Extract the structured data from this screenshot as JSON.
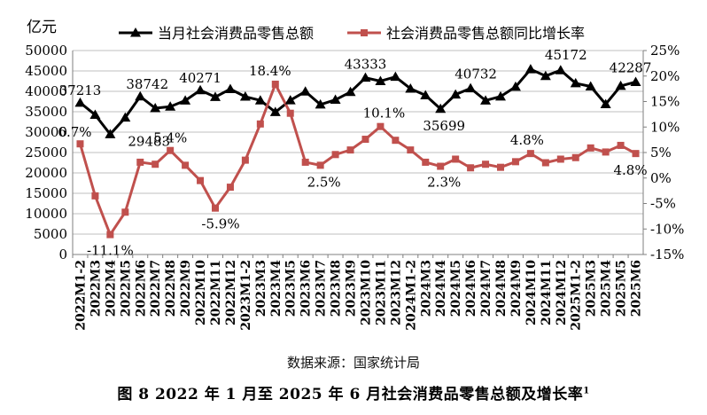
{
  "chart_data": {
    "type": "line",
    "y_left_unit": "亿元",
    "y_left_ticks": [
      0,
      5000,
      10000,
      15000,
      20000,
      25000,
      30000,
      35000,
      40000,
      45000,
      50000
    ],
    "y_left_lim": [
      0,
      50000
    ],
    "y_right_ticks": [
      "-15%",
      "-10%",
      "-5%",
      "0%",
      "5%",
      "10%",
      "15%",
      "20%",
      "25%"
    ],
    "y_right_lim": [
      -15,
      25
    ],
    "grid": "horizontal",
    "legend_position": "top",
    "categories": [
      "2022M1-2",
      "2022M3",
      "2022M4",
      "2022M5",
      "2022M6",
      "2022M7",
      "2022M8",
      "2022M9",
      "2022M10",
      "2022M11",
      "2022M12",
      "2023M1-2",
      "2023M3",
      "2023M4",
      "2023M5",
      "2023M6",
      "2023M7",
      "2023M8",
      "2023M9",
      "2023M10",
      "2023M11",
      "2023M12",
      "2024M1-2",
      "2024M3",
      "2024M4",
      "2024M5",
      "2024M6",
      "2024M7",
      "2024M8",
      "2024M9",
      "2024M10",
      "2024M11",
      "2024M12",
      "2025M1-2",
      "2025M3",
      "2025M4",
      "2025M5",
      "2025M6"
    ],
    "series": [
      {
        "name": "当月社会消费品零售总额",
        "axis": "left",
        "color": "#000000",
        "marker": "triangle",
        "values": [
          37213,
          34233,
          29483,
          33547,
          38742,
          35870,
          36258,
          37745,
          40271,
          38615,
          40542,
          38691,
          37779,
          34910,
          37803,
          39951,
          36761,
          37933,
          39826,
          43333,
          42505,
          43550,
          40660,
          39020,
          35699,
          39211,
          40732,
          37757,
          38726,
          41112,
          45396,
          43763,
          45172,
          41976,
          41196,
          36849,
          41326,
          42287
        ],
        "labels": [
          {
            "index": 0,
            "text": "37213"
          },
          {
            "index": 2,
            "text": "29483"
          },
          {
            "index": 4,
            "text": "38742"
          },
          {
            "index": 8,
            "text": "40271"
          },
          {
            "index": 19,
            "text": "43333"
          },
          {
            "index": 24,
            "text": "35699"
          },
          {
            "index": 26,
            "text": "40732"
          },
          {
            "index": 32,
            "text": "45172"
          },
          {
            "index": 37,
            "text": "42287"
          }
        ]
      },
      {
        "name": "社会消费品零售总额同比增长率",
        "axis": "right",
        "color": "#c0504d",
        "marker": "square",
        "values": [
          6.7,
          -3.5,
          -11.1,
          -6.7,
          3.1,
          2.7,
          5.4,
          2.5,
          -0.5,
          -5.9,
          -1.8,
          3.5,
          10.6,
          18.4,
          12.7,
          3.1,
          2.5,
          4.6,
          5.5,
          7.6,
          10.1,
          7.4,
          5.5,
          3.1,
          2.3,
          3.7,
          2.0,
          2.7,
          2.1,
          3.2,
          4.8,
          3.0,
          3.7,
          4.0,
          5.9,
          5.1,
          6.4,
          4.8
        ],
        "labels": [
          {
            "index": 0,
            "text": "6.7%"
          },
          {
            "index": 2,
            "text": "-11.1%"
          },
          {
            "index": 6,
            "text": "5.4%"
          },
          {
            "index": 9,
            "text": "-5.9%"
          },
          {
            "index": 13,
            "text": "18.4%"
          },
          {
            "index": 16,
            "text": "2.5%"
          },
          {
            "index": 20,
            "text": "10.1%"
          },
          {
            "index": 24,
            "text": "2.3%"
          },
          {
            "index": 30,
            "text": "4.8%"
          },
          {
            "index": 37,
            "text": "4.8%"
          }
        ]
      }
    ]
  },
  "source_note": "数据来源：国家统计局",
  "caption": {
    "text": "图 8  2022 年 1 月至 2025 年 6 月社会消费品零售总额及增长率",
    "footnote_mark": "1"
  }
}
